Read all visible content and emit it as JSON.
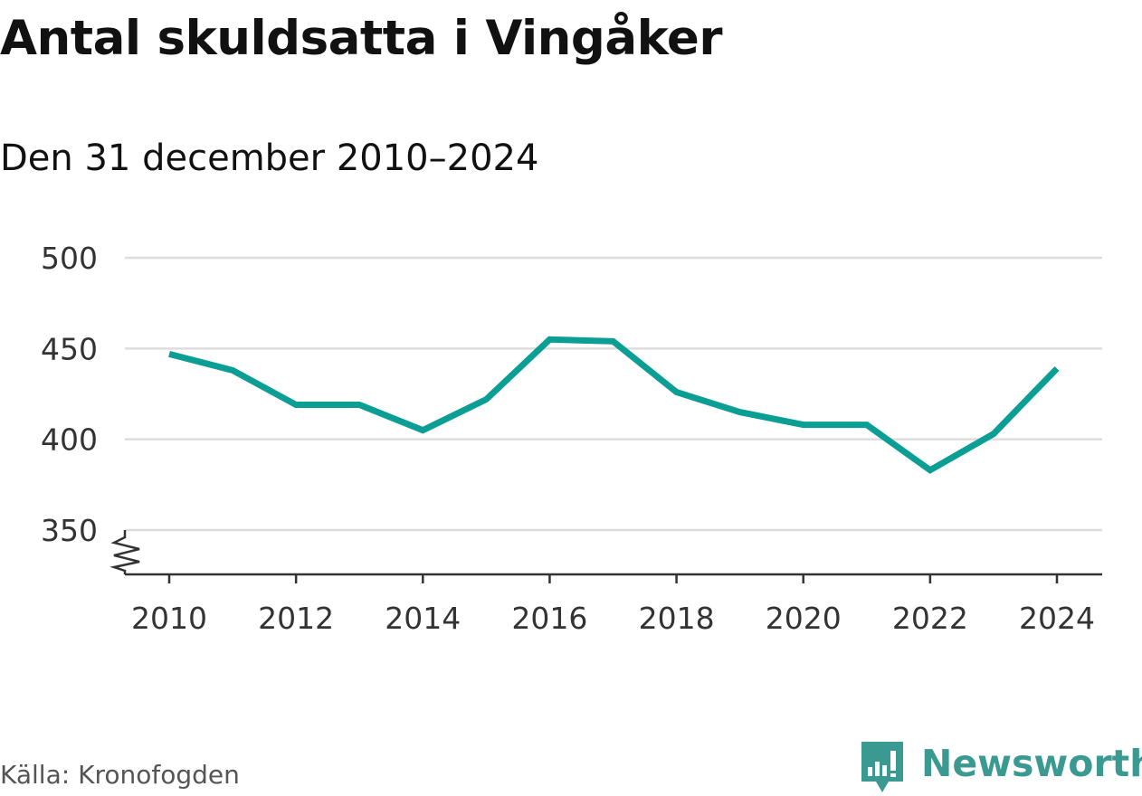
{
  "chart_data": {
    "type": "line",
    "title": "Antal skuldsatta i Vingåker",
    "subtitle": "Den 31 december 2010–2024",
    "x": [
      2010,
      2011,
      2012,
      2013,
      2014,
      2015,
      2016,
      2017,
      2018,
      2019,
      2020,
      2021,
      2022,
      2023,
      2024
    ],
    "series": [
      {
        "values": [
          447,
          438,
          419,
          419,
          405,
          422,
          455,
          454,
          426,
          415,
          408,
          408,
          383,
          403,
          439
        ],
        "color": "#0a9e94"
      }
    ],
    "x_ticks": [
      "2010",
      "2012",
      "2014",
      "2016",
      "2018",
      "2020",
      "2022",
      "2024"
    ],
    "y_ticks": [
      "350",
      "400",
      "450",
      "500"
    ],
    "ylim": [
      350,
      500
    ],
    "xlim": [
      2010,
      2024
    ],
    "axis_break": true,
    "grid": true,
    "gridline_color": "#dddddd",
    "axis_color": "#333333"
  },
  "source": "Källa: Kronofogden",
  "brand": {
    "name": "Newsworthy",
    "icon": "newsworthy-logo-icon",
    "color": "#3a9a92"
  }
}
